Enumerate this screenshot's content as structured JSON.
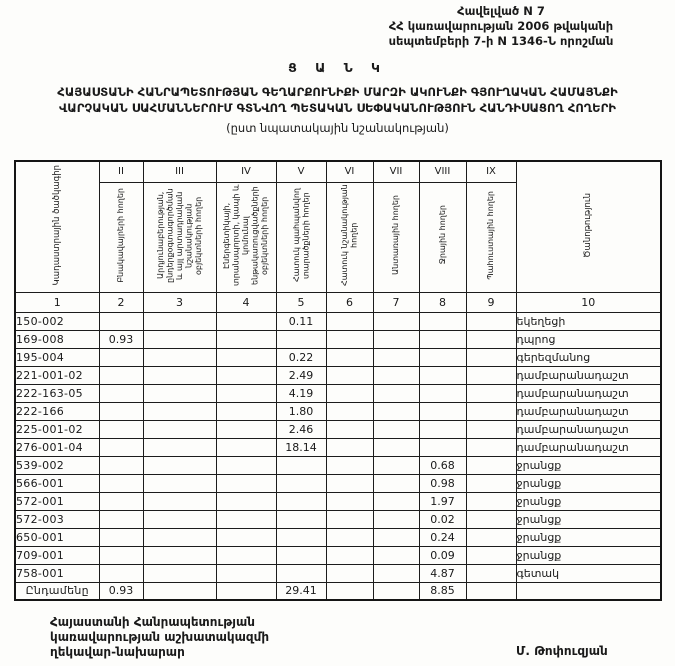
{
  "colors": {
    "ink": "#1a1a1a",
    "paper": "#fdfdfb"
  },
  "appendix": {
    "line1": "Հավելված N 7",
    "line2": "ՀՀ կառավարության 2006 թվականի",
    "line3": "սեպտեմբերի 7-ի  N 1346-Ն որոշման"
  },
  "title": {
    "main": "Ց Ա Ն Կ",
    "line1": "ՀԱՅԱՍՏԱՆԻ ՀԱՆՐԱՊԵՏՈՒԹՅԱՆ ԳԵՂԱՐՔՈՒՆԻՔԻ ՄԱՐԶԻ ԱԿՈՒՆՔԻ ԳՅՈՒՂԱԿԱՆ ՀԱՄԱՅՆՔԻ",
    "line2": "ՎԱՐՉԱԿԱՆ ՍԱՀՄԱՆՆԵՐՈՒՄ ԳՏՆՎՈՂ ՊԵՏԱԿԱՆ ՍԵՓԱԿԱՆՈՒԹՅՈՒՆ ՀԱՆԴԻՍԱՑՈՂ ՀՈՂԵՐԻ",
    "subtitle": "(ըստ նպատակային նշանակության)"
  },
  "table": {
    "columns": [
      {
        "num": "1",
        "roman": "",
        "header": "Կադաստրային ծածկագիր"
      },
      {
        "num": "2",
        "roman": "II",
        "header": "Բնակավայրերի հողեր"
      },
      {
        "num": "3",
        "roman": "III",
        "header": "Արդյունաբերության, ընդերքօգտագործման և այլ արտադրական նշանակության օբյեկտների հողեր"
      },
      {
        "num": "4",
        "roman": "IV",
        "header": "Էներգետիկայի, տրանսպորտի, կապի և կոմունալ ենթակառուցվածքների օբյեկտների հողեր"
      },
      {
        "num": "5",
        "roman": "V",
        "header": "Հատուկ պահպանվող տարածքների հողեր"
      },
      {
        "num": "6",
        "roman": "VI",
        "header": "Հատուկ նշանակության հողեր"
      },
      {
        "num": "7",
        "roman": "VII",
        "header": "Անտառային հողեր"
      },
      {
        "num": "8",
        "roman": "VIII",
        "header": "Ջրային հողեր"
      },
      {
        "num": "9",
        "roman": "IX",
        "header": "Պահուստային հողեր"
      },
      {
        "num": "10",
        "roman": "",
        "header": "Ծանոթություն"
      }
    ],
    "rows": [
      {
        "code": "150-002",
        "values": [
          "",
          "",
          "",
          "0.11",
          "",
          "",
          "",
          ""
        ],
        "note": "եկեղեցի"
      },
      {
        "code": "169-008",
        "values": [
          "0.93",
          "",
          "",
          "",
          "",
          "",
          "",
          ""
        ],
        "note": "դպրոց"
      },
      {
        "code": "195-004",
        "values": [
          "",
          "",
          "",
          "0.22",
          "",
          "",
          "",
          ""
        ],
        "note": "գերեզմանոց"
      },
      {
        "code": "221-001-02",
        "values": [
          "",
          "",
          "",
          "2.49",
          "",
          "",
          "",
          ""
        ],
        "note": "դամբարանադաշտ"
      },
      {
        "code": "222-163-05",
        "values": [
          "",
          "",
          "",
          "4.19",
          "",
          "",
          "",
          ""
        ],
        "note": "դամբարանադաշտ"
      },
      {
        "code": "222-166",
        "values": [
          "",
          "",
          "",
          "1.80",
          "",
          "",
          "",
          ""
        ],
        "note": "դամբարանադաշտ"
      },
      {
        "code": "225-001-02",
        "values": [
          "",
          "",
          "",
          "2.46",
          "",
          "",
          "",
          ""
        ],
        "note": "դամբարանադաշտ"
      },
      {
        "code": "276-001-04",
        "values": [
          "",
          "",
          "",
          "18.14",
          "",
          "",
          "",
          ""
        ],
        "note": "դամբարանադաշտ"
      },
      {
        "code": "539-002",
        "values": [
          "",
          "",
          "",
          "",
          "",
          "",
          "0.68",
          ""
        ],
        "note": "ջրանցք"
      },
      {
        "code": "566-001",
        "values": [
          "",
          "",
          "",
          "",
          "",
          "",
          "0.98",
          ""
        ],
        "note": "ջրանցք"
      },
      {
        "code": "572-001",
        "values": [
          "",
          "",
          "",
          "",
          "",
          "",
          "1.97",
          ""
        ],
        "note": "ջրանցք"
      },
      {
        "code": "572-003",
        "values": [
          "",
          "",
          "",
          "",
          "",
          "",
          "0.02",
          ""
        ],
        "note": "ջրանցք"
      },
      {
        "code": "650-001",
        "values": [
          "",
          "",
          "",
          "",
          "",
          "",
          "0.24",
          ""
        ],
        "note": "ջրանցք"
      },
      {
        "code": "709-001",
        "values": [
          "",
          "",
          "",
          "",
          "",
          "",
          "0.09",
          ""
        ],
        "note": "ջրանցք"
      },
      {
        "code": "758-001",
        "values": [
          "",
          "",
          "",
          "",
          "",
          "",
          "4.87",
          ""
        ],
        "note": "գետակ"
      }
    ],
    "total": {
      "label": "Ընդամենը",
      "values": [
        "0.93",
        "",
        "",
        "29.41",
        "",
        "",
        "8.85",
        ""
      ],
      "note": ""
    }
  },
  "footer": {
    "line1": "Հայաստանի Հանրապետության",
    "line2": "կառավարության աշխատակազմի",
    "line3": "ղեկավար-նախարար",
    "signature": "Մ. Թոփուզյան"
  }
}
